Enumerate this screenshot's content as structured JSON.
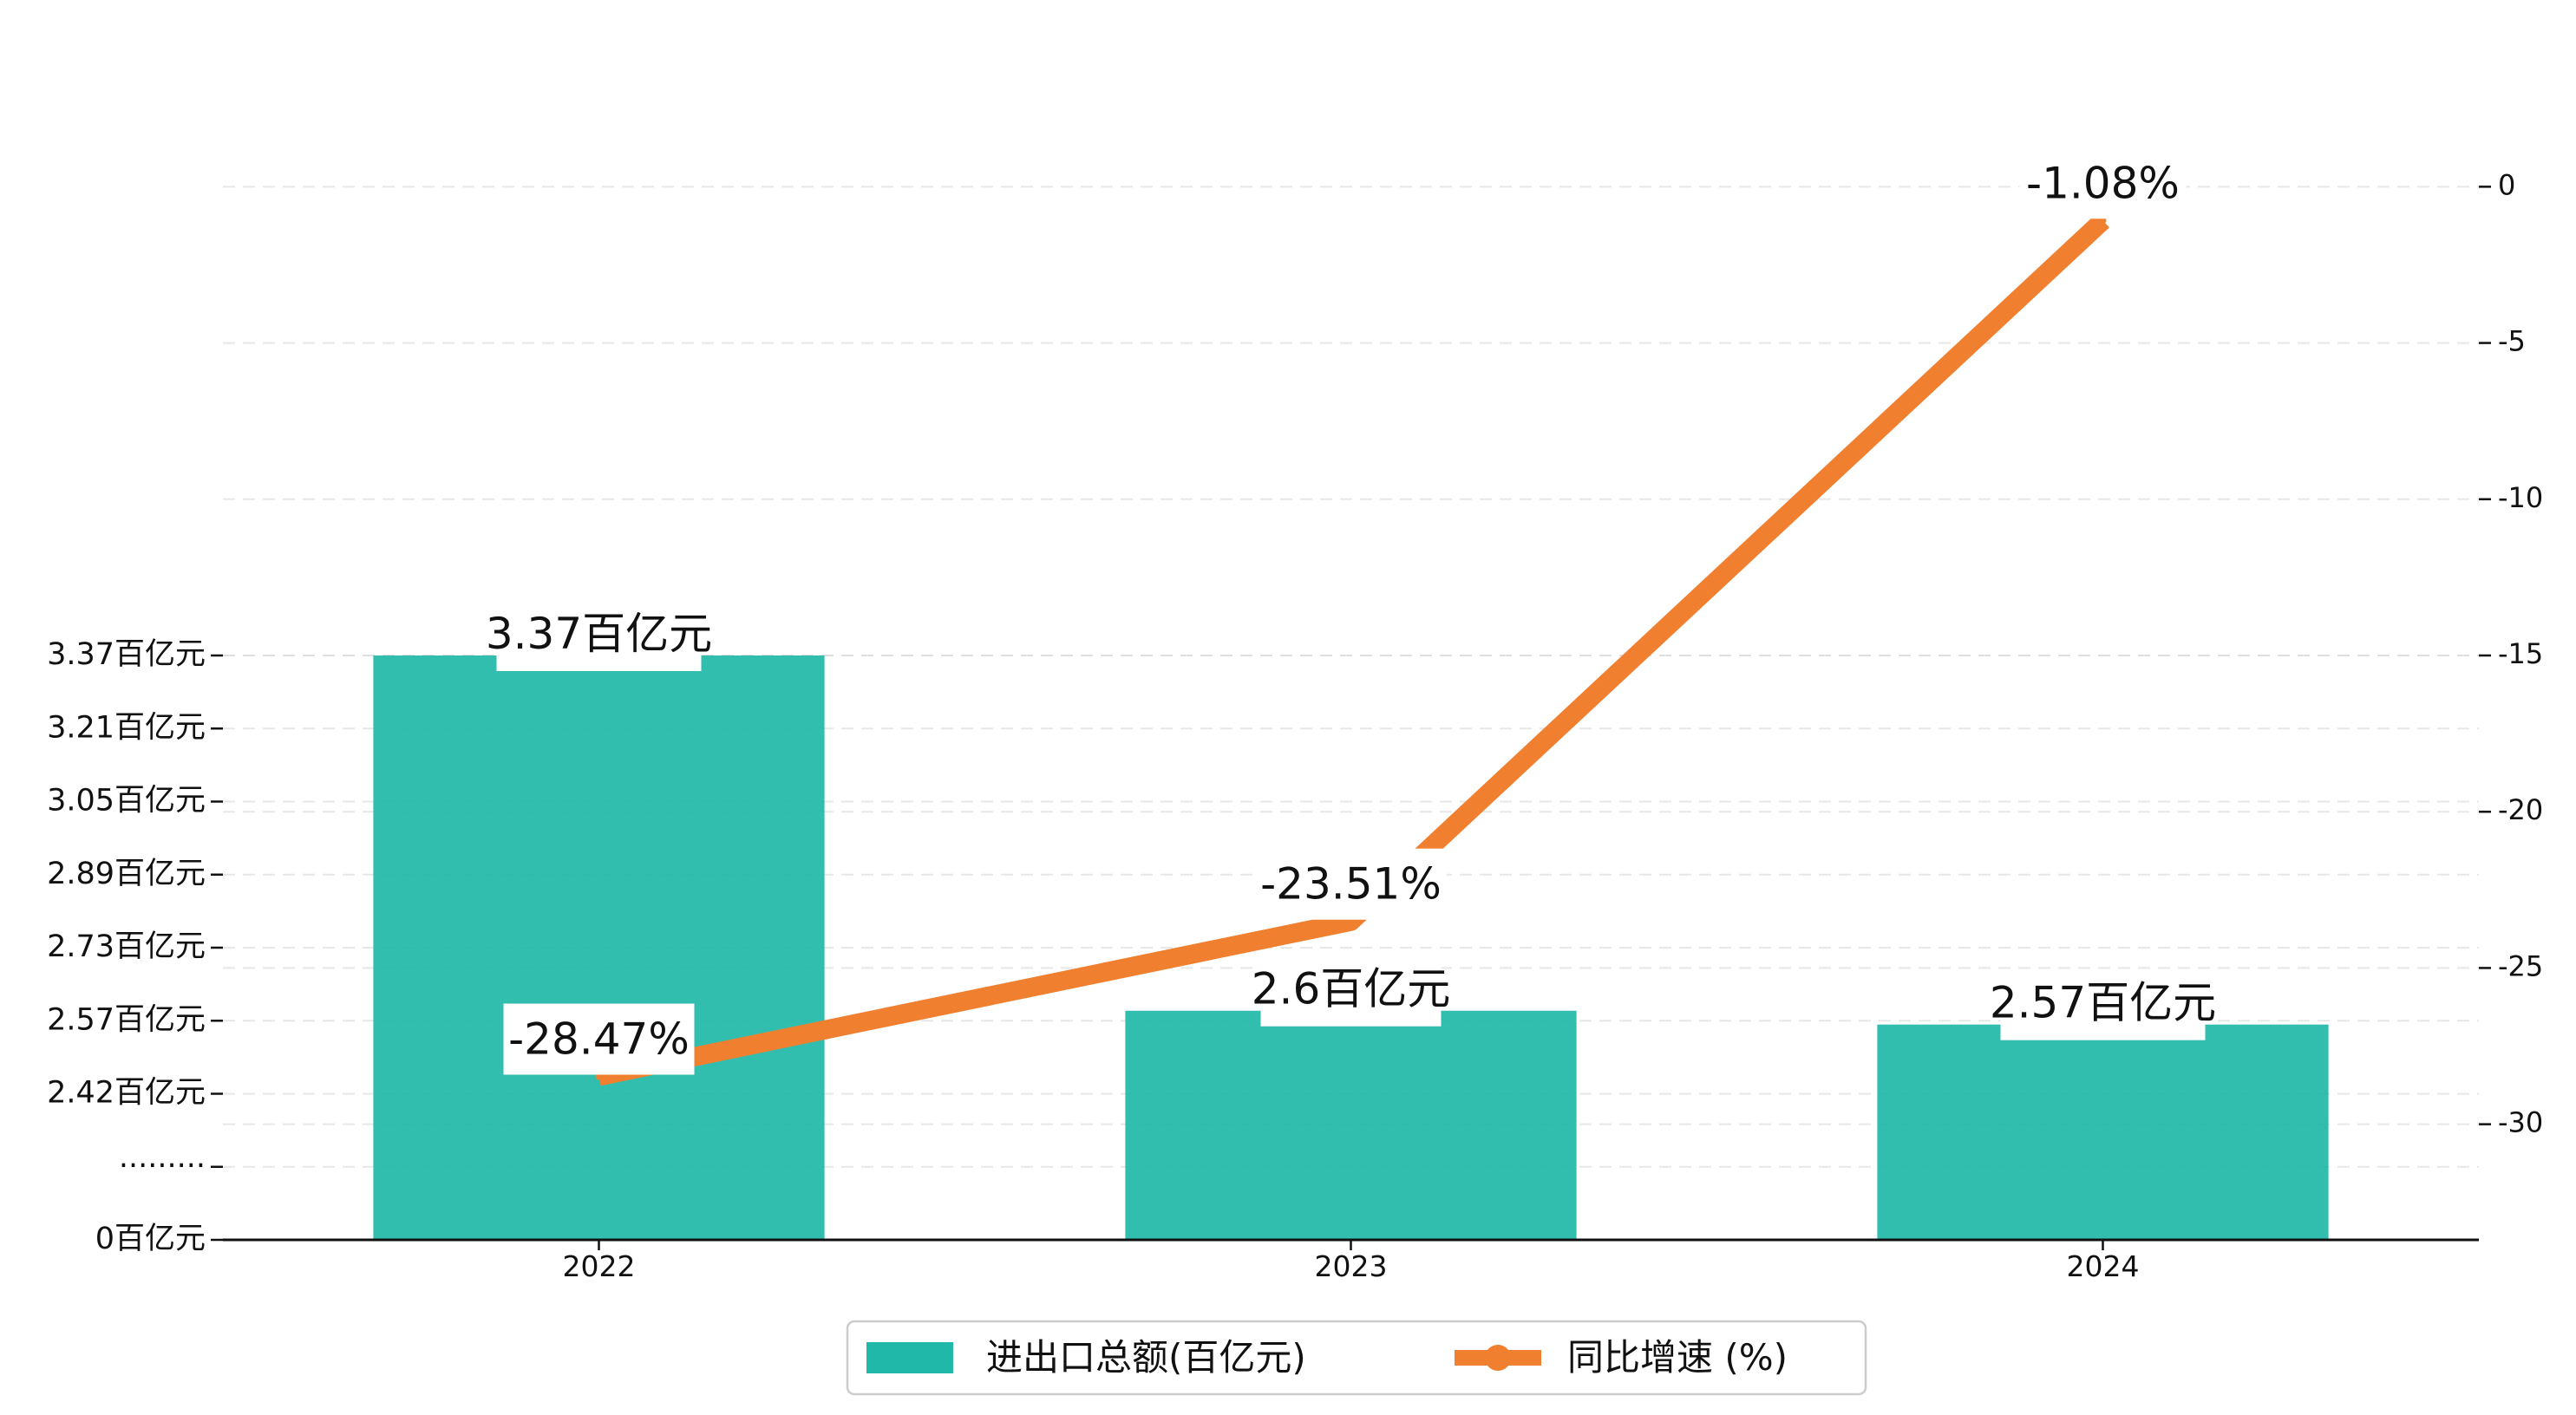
{
  "chart_data": {
    "type": "bar+line",
    "categories": [
      "2022",
      "2023",
      "2024"
    ],
    "bar_series": {
      "name": "进出口总额(百亿元)",
      "values": [
        3.37,
        2.6,
        2.57
      ],
      "labels": [
        "3.37百亿元",
        "2.6百亿元",
        "2.57百亿元"
      ],
      "color": "#20B8A8"
    },
    "line_series": {
      "name": "同比增速 (%)",
      "values": [
        -28.47,
        -23.51,
        -1.08
      ],
      "labels": [
        "-28.47%",
        "-23.51%",
        "-1.08%"
      ],
      "color": "#F08030"
    },
    "left_axis": {
      "ticks": [
        {
          "value": 0,
          "label": "0百亿元"
        },
        {
          "value": 0.5,
          "label": "·········"
        },
        {
          "value": 1,
          "label": "2.42百亿元"
        },
        {
          "value": 1.5,
          "label": "2.57百亿元"
        },
        {
          "value": 2,
          "label": "2.73百亿元"
        },
        {
          "value": 2.5,
          "label": "2.89百亿元"
        },
        {
          "value": 3,
          "label": "3.05百亿元"
        },
        {
          "value": 3.5,
          "label": "3.21百亿元"
        },
        {
          "value": 4,
          "label": "3.37百亿元"
        }
      ],
      "broken_scale": true
    },
    "right_axis": {
      "ticks": [
        0,
        -5,
        -10,
        -15,
        -20,
        -25,
        -30
      ],
      "range": [
        -33.7,
        3.7
      ]
    },
    "grid": "horizontal dashed",
    "legend": {
      "position": "bottom-center",
      "entries": [
        "进出口总额(百亿元)",
        "同比增速 (%)"
      ]
    }
  }
}
